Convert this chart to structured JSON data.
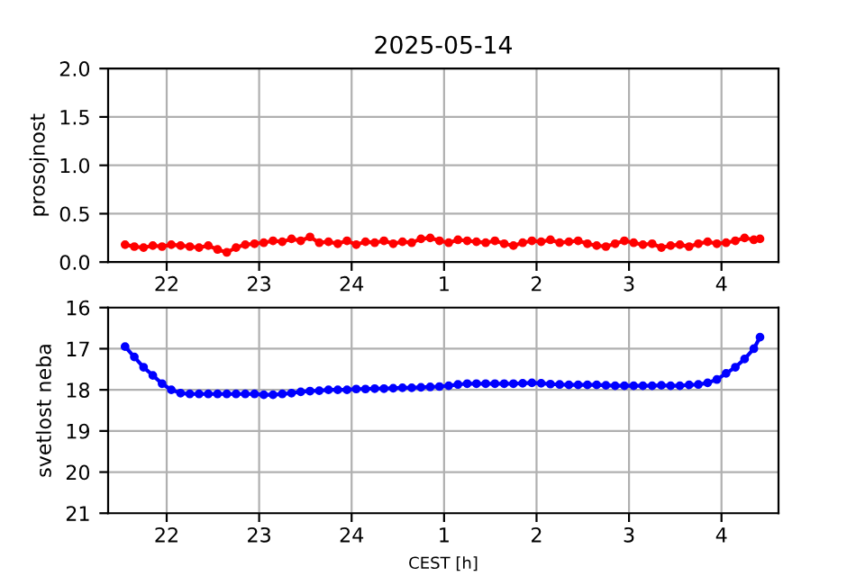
{
  "chart_data": [
    {
      "type": "line",
      "title": "2025-05-14",
      "ylabel": "prosojnost",
      "marker": "circle",
      "grid": true,
      "xlim": [
        "2025-05-14T21:22",
        "2025-05-15T04:37"
      ],
      "xticks": [
        {
          "value": "2025-05-14T22:00",
          "label": "22"
        },
        {
          "value": "2025-05-14T23:00",
          "label": "23"
        },
        {
          "value": "2025-05-15T00:00",
          "label": "24"
        },
        {
          "value": "2025-05-15T01:00",
          "label": "1"
        },
        {
          "value": "2025-05-15T02:00",
          "label": "2"
        },
        {
          "value": "2025-05-15T03:00",
          "label": "3"
        },
        {
          "value": "2025-05-15T04:00",
          "label": "4"
        }
      ],
      "ylim": [
        0,
        2
      ],
      "yticks": [
        {
          "value": 0,
          "label": "0.0"
        },
        {
          "value": 0.5,
          "label": "0.5"
        },
        {
          "value": 1,
          "label": "1.0"
        },
        {
          "value": 1.5,
          "label": "1.5"
        },
        {
          "value": 2,
          "label": "2.0"
        }
      ],
      "x": [
        "2025-05-14T21:33",
        "2025-05-14T21:39",
        "2025-05-14T21:45",
        "2025-05-14T21:51",
        "2025-05-14T21:57",
        "2025-05-14T22:03",
        "2025-05-14T22:09",
        "2025-05-14T22:15",
        "2025-05-14T22:21",
        "2025-05-14T22:27",
        "2025-05-14T22:33",
        "2025-05-14T22:39",
        "2025-05-14T22:45",
        "2025-05-14T22:51",
        "2025-05-14T22:57",
        "2025-05-14T23:03",
        "2025-05-14T23:09",
        "2025-05-14T23:15",
        "2025-05-14T23:21",
        "2025-05-14T23:27",
        "2025-05-14T23:33",
        "2025-05-14T23:39",
        "2025-05-14T23:45",
        "2025-05-14T23:51",
        "2025-05-14T23:57",
        "2025-05-15T00:03",
        "2025-05-15T00:09",
        "2025-05-15T00:15",
        "2025-05-15T00:21",
        "2025-05-15T00:27",
        "2025-05-15T00:33",
        "2025-05-15T00:39",
        "2025-05-15T00:45",
        "2025-05-15T00:51",
        "2025-05-15T00:57",
        "2025-05-15T01:03",
        "2025-05-15T01:09",
        "2025-05-15T01:15",
        "2025-05-15T01:21",
        "2025-05-15T01:27",
        "2025-05-15T01:33",
        "2025-05-15T01:39",
        "2025-05-15T01:45",
        "2025-05-15T01:51",
        "2025-05-15T01:57",
        "2025-05-15T02:03",
        "2025-05-15T02:09",
        "2025-05-15T02:15",
        "2025-05-15T02:21",
        "2025-05-15T02:27",
        "2025-05-15T02:33",
        "2025-05-15T02:39",
        "2025-05-15T02:45",
        "2025-05-15T02:51",
        "2025-05-15T02:57",
        "2025-05-15T03:03",
        "2025-05-15T03:09",
        "2025-05-15T03:15",
        "2025-05-15T03:21",
        "2025-05-15T03:27",
        "2025-05-15T03:33",
        "2025-05-15T03:39",
        "2025-05-15T03:45",
        "2025-05-15T03:51",
        "2025-05-15T03:57",
        "2025-05-15T04:03",
        "2025-05-15T04:09",
        "2025-05-15T04:15",
        "2025-05-15T04:21",
        "2025-05-15T04:25"
      ],
      "series": [
        {
          "color": "#ff0000",
          "values": [
            0.18,
            0.16,
            0.15,
            0.17,
            0.16,
            0.18,
            0.17,
            0.16,
            0.15,
            0.17,
            0.13,
            0.1,
            0.15,
            0.18,
            0.19,
            0.2,
            0.22,
            0.21,
            0.24,
            0.22,
            0.26,
            0.2,
            0.21,
            0.19,
            0.22,
            0.18,
            0.21,
            0.2,
            0.22,
            0.19,
            0.21,
            0.2,
            0.24,
            0.25,
            0.22,
            0.2,
            0.23,
            0.22,
            0.21,
            0.2,
            0.22,
            0.19,
            0.17,
            0.2,
            0.22,
            0.21,
            0.23,
            0.2,
            0.21,
            0.22,
            0.19,
            0.17,
            0.16,
            0.19,
            0.22,
            0.2,
            0.18,
            0.19,
            0.15,
            0.17,
            0.18,
            0.16,
            0.19,
            0.21,
            0.19,
            0.2,
            0.22,
            0.25,
            0.23,
            0.24
          ]
        }
      ]
    },
    {
      "type": "line",
      "xlabel": "CEST [h]",
      "ylabel": "svetlost neba",
      "marker": "circle",
      "grid": true,
      "xlim": [
        "2025-05-14T21:22",
        "2025-05-15T04:37"
      ],
      "xticks": [
        {
          "value": "2025-05-14T22:00",
          "label": "22"
        },
        {
          "value": "2025-05-14T23:00",
          "label": "23"
        },
        {
          "value": "2025-05-15T00:00",
          "label": "24"
        },
        {
          "value": "2025-05-15T01:00",
          "label": "1"
        },
        {
          "value": "2025-05-15T02:00",
          "label": "2"
        },
        {
          "value": "2025-05-15T03:00",
          "label": "3"
        },
        {
          "value": "2025-05-15T04:00",
          "label": "4"
        }
      ],
      "ylim": [
        21,
        16
      ],
      "yticks": [
        16,
        17,
        18,
        19,
        20,
        21
      ],
      "x": [
        "2025-05-14T21:33",
        "2025-05-14T21:39",
        "2025-05-14T21:45",
        "2025-05-14T21:51",
        "2025-05-14T21:57",
        "2025-05-14T22:03",
        "2025-05-14T22:09",
        "2025-05-14T22:15",
        "2025-05-14T22:21",
        "2025-05-14T22:27",
        "2025-05-14T22:33",
        "2025-05-14T22:39",
        "2025-05-14T22:45",
        "2025-05-14T22:51",
        "2025-05-14T22:57",
        "2025-05-14T23:03",
        "2025-05-14T23:09",
        "2025-05-14T23:15",
        "2025-05-14T23:21",
        "2025-05-14T23:27",
        "2025-05-14T23:33",
        "2025-05-14T23:39",
        "2025-05-14T23:45",
        "2025-05-14T23:51",
        "2025-05-14T23:57",
        "2025-05-15T00:03",
        "2025-05-15T00:09",
        "2025-05-15T00:15",
        "2025-05-15T00:21",
        "2025-05-15T00:27",
        "2025-05-15T00:33",
        "2025-05-15T00:39",
        "2025-05-15T00:45",
        "2025-05-15T00:51",
        "2025-05-15T00:57",
        "2025-05-15T01:03",
        "2025-05-15T01:09",
        "2025-05-15T01:15",
        "2025-05-15T01:21",
        "2025-05-15T01:27",
        "2025-05-15T01:33",
        "2025-05-15T01:39",
        "2025-05-15T01:45",
        "2025-05-15T01:51",
        "2025-05-15T01:57",
        "2025-05-15T02:03",
        "2025-05-15T02:09",
        "2025-05-15T02:15",
        "2025-05-15T02:21",
        "2025-05-15T02:27",
        "2025-05-15T02:33",
        "2025-05-15T02:39",
        "2025-05-15T02:45",
        "2025-05-15T02:51",
        "2025-05-15T02:57",
        "2025-05-15T03:03",
        "2025-05-15T03:09",
        "2025-05-15T03:15",
        "2025-05-15T03:21",
        "2025-05-15T03:27",
        "2025-05-15T03:33",
        "2025-05-15T03:39",
        "2025-05-15T03:45",
        "2025-05-15T03:51",
        "2025-05-15T03:57",
        "2025-05-15T04:03",
        "2025-05-15T04:09",
        "2025-05-15T04:15",
        "2025-05-15T04:21",
        "2025-05-15T04:25"
      ],
      "series": [
        {
          "color": "#0000ff",
          "values": [
            16.95,
            17.2,
            17.45,
            17.65,
            17.85,
            18.0,
            18.08,
            18.1,
            18.1,
            18.1,
            18.1,
            18.1,
            18.1,
            18.1,
            18.1,
            18.12,
            18.12,
            18.1,
            18.08,
            18.05,
            18.03,
            18.02,
            18.0,
            18.0,
            18.0,
            17.98,
            17.98,
            17.97,
            17.97,
            17.96,
            17.95,
            17.95,
            17.94,
            17.93,
            17.92,
            17.9,
            17.87,
            17.85,
            17.85,
            17.85,
            17.85,
            17.85,
            17.85,
            17.84,
            17.83,
            17.84,
            17.86,
            17.87,
            17.88,
            17.88,
            17.88,
            17.88,
            17.89,
            17.9,
            17.9,
            17.9,
            17.9,
            17.9,
            17.89,
            17.9,
            17.9,
            17.88,
            17.87,
            17.83,
            17.75,
            17.6,
            17.45,
            17.25,
            17.0,
            16.72
          ]
        }
      ]
    }
  ]
}
